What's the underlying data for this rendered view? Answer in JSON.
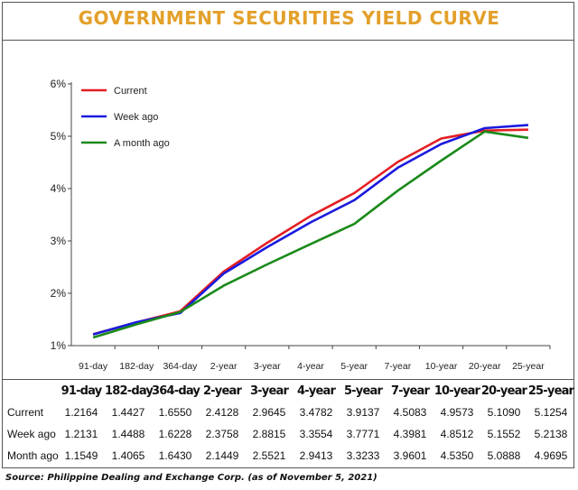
{
  "title": "GOVERNMENT SECURITIES YIELD CURVE",
  "source": "Source: Philippine Dealing and Exchange Corp. (as of November  5, 2021)",
  "chart_data": {
    "type": "line",
    "categories": [
      "91-day",
      "182-day",
      "364-day",
      "2-year",
      "3-year",
      "4-year",
      "5-year",
      "7-year",
      "10-year",
      "20-year",
      "25-year"
    ],
    "yticks": [
      "1%",
      "2%",
      "3%",
      "4%",
      "5%",
      "6%"
    ],
    "ylim": [
      1,
      6
    ],
    "grid": false,
    "legend_position": "top-left",
    "series": [
      {
        "name": "Current",
        "color": "#e31e24",
        "values": [
          1.2164,
          1.4427,
          1.655,
          2.4128,
          2.9645,
          3.4782,
          3.9137,
          4.5083,
          4.9573,
          5.109,
          5.1254
        ]
      },
      {
        "name": "Week ago",
        "color": "#1a1adf",
        "values": [
          1.2131,
          1.4488,
          1.6228,
          2.3758,
          2.8815,
          3.3554,
          3.7771,
          4.3981,
          4.8512,
          5.1552,
          5.2138
        ]
      },
      {
        "name": "A month ago",
        "color": "#1a8a1a",
        "values": [
          1.1549,
          1.4065,
          1.643,
          2.1449,
          2.5521,
          2.9413,
          3.3233,
          3.9601,
          4.535,
          5.0888,
          4.9695
        ]
      }
    ]
  },
  "table": {
    "headers": [
      "91-day",
      "182-day",
      "364-day",
      "2-year",
      "3-year",
      "4-year",
      "5-year",
      "7-year",
      "10-year",
      "20-year",
      "25-year"
    ],
    "rows": [
      {
        "label": "Current",
        "values": [
          "1.2164",
          "1.4427",
          "1.6550",
          "2.4128",
          "2.9645",
          "3.4782",
          "3.9137",
          "4.5083",
          "4.9573",
          "5.1090",
          "5.1254"
        ]
      },
      {
        "label": "Week ago",
        "values": [
          "1.2131",
          "1.4488",
          "1.6228",
          "2.3758",
          "2.8815",
          "3.3554",
          "3.7771",
          "4.3981",
          "4.8512",
          "5.1552",
          "5.2138"
        ]
      },
      {
        "label": "Month ago",
        "values": [
          "1.1549",
          "1.4065",
          "1.6430",
          "2.1449",
          "2.5521",
          "2.9413",
          "3.3233",
          "3.9601",
          "4.5350",
          "5.0888",
          "4.9695"
        ]
      }
    ]
  }
}
